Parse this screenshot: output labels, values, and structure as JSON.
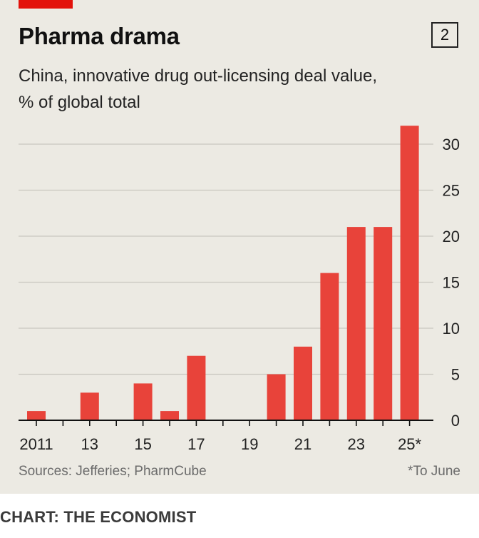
{
  "header": {
    "title": "Pharma drama",
    "chart_number": "2",
    "subtitle": "China, innovative drug out-licensing deal value, % of global total"
  },
  "footer": {
    "sources": "Sources: Jefferies; PharmCube",
    "footnote": "*To June",
    "credit": "CHART: THE ECONOMIST"
  },
  "colors": {
    "bar": "#e8433a",
    "accent": "#e3120b",
    "panel": "#eceae3"
  },
  "chart_data": {
    "type": "bar",
    "title": "Pharma drama",
    "subtitle": "China, innovative drug out-licensing deal value, % of global total",
    "xlabel": "",
    "ylabel": "% of global total",
    "categories": [
      "2011",
      "2012",
      "2013",
      "2014",
      "2015",
      "2016",
      "2017",
      "2018",
      "2019",
      "2020",
      "2021",
      "2022",
      "2023",
      "2024",
      "2025*"
    ],
    "values": [
      1,
      0,
      3,
      0,
      4,
      1,
      7,
      0,
      0,
      5,
      8,
      16,
      21,
      21,
      32
    ],
    "x_tick_labels": [
      "2011",
      "13",
      "15",
      "17",
      "19",
      "21",
      "23",
      "25*"
    ],
    "y_ticks": [
      0,
      5,
      10,
      15,
      20,
      25,
      30
    ],
    "ylim": [
      0,
      32
    ],
    "grid": true,
    "y_axis_side": "right"
  }
}
